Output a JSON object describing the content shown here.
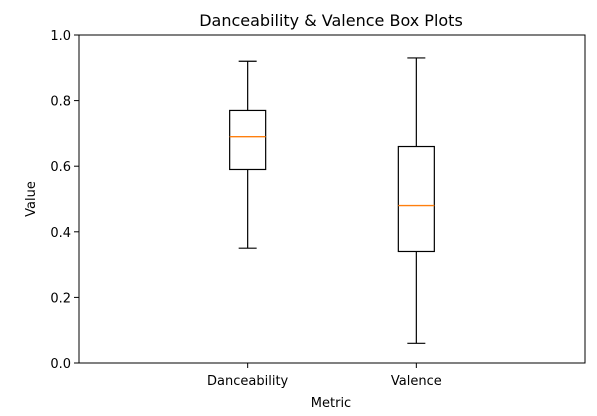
{
  "chart_data": {
    "type": "box",
    "title": "Danceability & Valence Box Plots",
    "xlabel": "Metric",
    "ylabel": "Value",
    "ylim": [
      0.0,
      1.0
    ],
    "yticks": [
      "0.0",
      "0.2",
      "0.4",
      "0.6",
      "0.8",
      "1.0"
    ],
    "categories": [
      "Danceability",
      "Valence"
    ],
    "boxes": [
      {
        "category": "Danceability",
        "whisker_low": 0.35,
        "q1": 0.59,
        "median": 0.69,
        "q3": 0.77,
        "whisker_high": 0.92
      },
      {
        "category": "Valence",
        "whisker_low": 0.06,
        "q1": 0.34,
        "median": 0.48,
        "q3": 0.66,
        "whisker_high": 0.93
      }
    ],
    "colors": {
      "median": "#ff7f0e",
      "box": "#000000"
    },
    "grid": false,
    "legend": "none"
  }
}
